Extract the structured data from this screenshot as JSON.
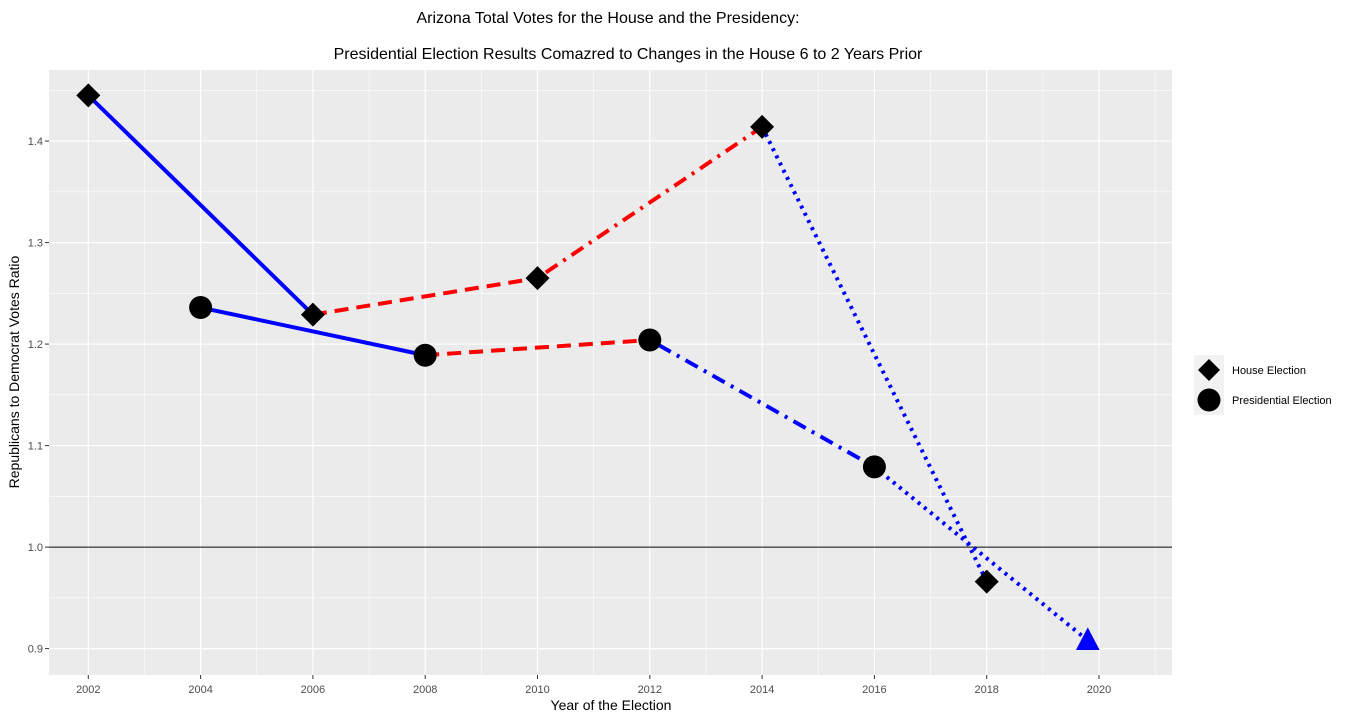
{
  "chart_data": {
    "type": "line",
    "title": "Arizona Total Votes for the House and the Presidency:",
    "subtitle": "Presidential Election Results Comazred to Changes in the House 6 to 2 Years Prior",
    "xlabel": "Year of the Election",
    "ylabel": "Republicans to Democrat Votes Ratio",
    "xlim": [
      2001.3,
      2021.3
    ],
    "ylim": [
      0.874,
      1.47
    ],
    "x_ticks": [
      2002,
      2004,
      2006,
      2008,
      2010,
      2012,
      2014,
      2016,
      2018,
      2020
    ],
    "x_tick_labels": [
      "2002",
      "2004",
      "2006",
      "2008",
      "2010",
      "2012",
      "2014",
      "2016",
      "2018",
      "2020"
    ],
    "y_ticks": [
      0.9,
      1.0,
      1.1,
      1.2,
      1.3,
      1.4
    ],
    "y_tick_labels": [
      "0.9",
      "1.0",
      "1.1",
      "1.2",
      "1.3",
      "1.4"
    ],
    "reference_line": {
      "y": 1.0,
      "color": "#000000"
    },
    "grid": true,
    "legend_position": "right",
    "series": [
      {
        "name": "House Election",
        "marker": "diamond",
        "color": "#000000",
        "points": [
          {
            "x": 2002,
            "y": 1.445
          },
          {
            "x": 2006,
            "y": 1.229
          },
          {
            "x": 2010,
            "y": 1.265
          },
          {
            "x": 2014,
            "y": 1.414
          },
          {
            "x": 2018,
            "y": 0.966
          }
        ]
      },
      {
        "name": "Presidential Election",
        "marker": "circle",
        "color": "#000000",
        "points": [
          {
            "x": 2004,
            "y": 1.236
          },
          {
            "x": 2008,
            "y": 1.189
          },
          {
            "x": 2012,
            "y": 1.204
          },
          {
            "x": 2016,
            "y": 1.079
          }
        ]
      }
    ],
    "segments": [
      {
        "from": [
          2002,
          1.445
        ],
        "to": [
          2006,
          1.229
        ],
        "color": "#0000ff",
        "style": "solid"
      },
      {
        "from": [
          2004,
          1.236
        ],
        "to": [
          2008,
          1.189
        ],
        "color": "#0000ff",
        "style": "solid"
      },
      {
        "from": [
          2006,
          1.229
        ],
        "to": [
          2010,
          1.265
        ],
        "color": "#ff0000",
        "style": "dashed"
      },
      {
        "from": [
          2008,
          1.189
        ],
        "to": [
          2012,
          1.204
        ],
        "color": "#ff0000",
        "style": "dashed"
      },
      {
        "from": [
          2010,
          1.265
        ],
        "to": [
          2014,
          1.414
        ],
        "color": "#ff0000",
        "style": "dotdash"
      },
      {
        "from": [
          2012,
          1.204
        ],
        "to": [
          2016,
          1.079
        ],
        "color": "#0000ff",
        "style": "dotdash"
      },
      {
        "from": [
          2014,
          1.414
        ],
        "to": [
          2018,
          0.966
        ],
        "color": "#0000ff",
        "style": "dotted"
      },
      {
        "from": [
          2016,
          1.079
        ],
        "to": [
          2019.8,
          0.908
        ],
        "color": "#0000ff",
        "style": "dotted"
      }
    ],
    "projection_marker": {
      "x": 2019.8,
      "y": 0.908,
      "shape": "triangle",
      "color": "#0000ff"
    }
  }
}
